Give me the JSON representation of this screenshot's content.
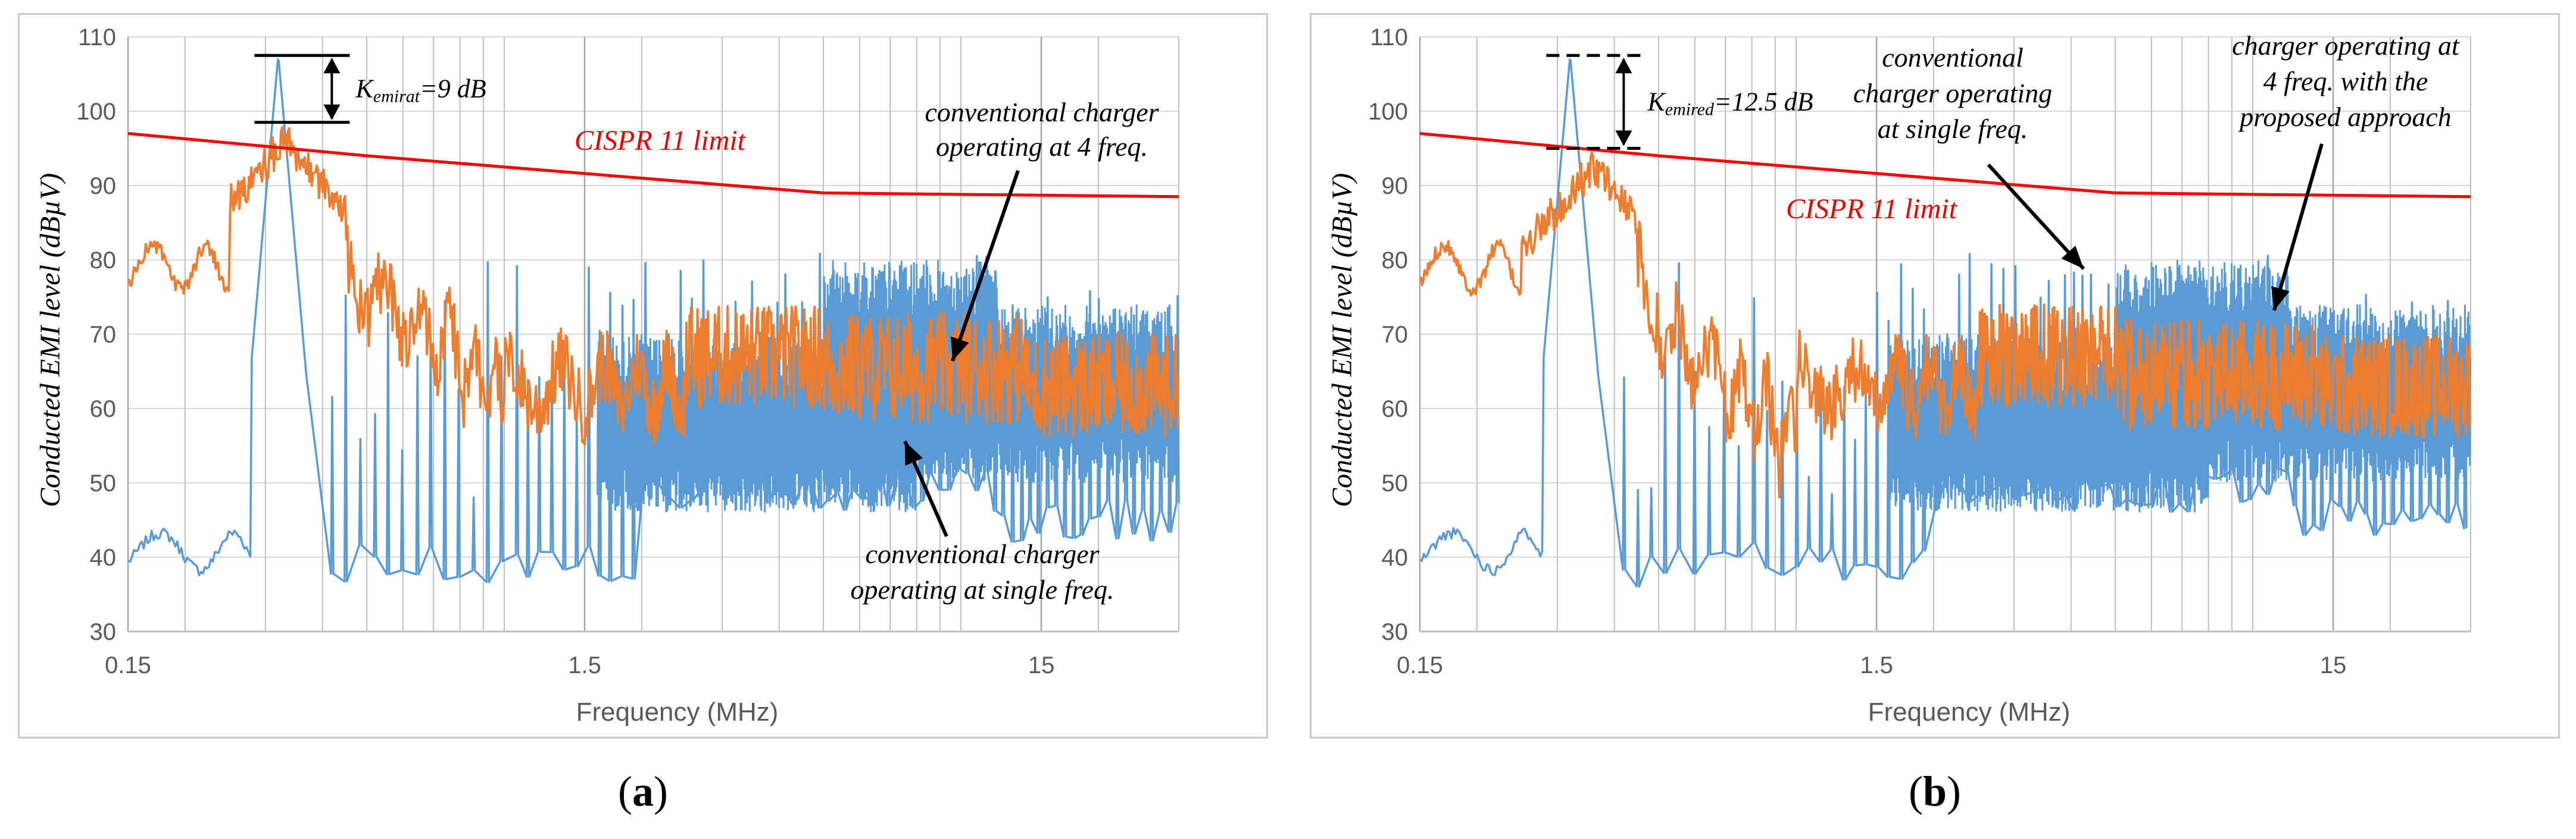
{
  "chart_data": [
    {
      "type": "line",
      "panel": "a",
      "caption_letter": "a",
      "xlabel": "Frequency (MHz)",
      "ylabel": "Conducted EMI level (dBµV)",
      "x_scale": "log",
      "xlim": [
        0.15,
        30
      ],
      "ylim": [
        30,
        110
      ],
      "x_ticks": [
        "0.15",
        "1.5",
        "15"
      ],
      "y_ticks": [
        "30",
        "40",
        "50",
        "60",
        "70",
        "80",
        "90",
        "100",
        "110"
      ],
      "limit_line": {
        "name": "CISPR 11 limit",
        "color": "#ff0000",
        "x": [
          0.15,
          0.5,
          5,
          30
        ],
        "y": [
          97,
          94,
          89,
          88.5
        ]
      },
      "series": [
        {
          "name": "conventional charger operating at single freq.",
          "color": "#5b9bd5",
          "peak": {
            "x": 0.32,
            "y": 107.5
          }
        },
        {
          "name": "conventional charger operating at 4 freq.",
          "color": "#ed7d31",
          "peak": {
            "x": 0.33,
            "y": 98.5
          }
        }
      ],
      "annotations": {
        "limit_label": "CISPR 11 limit",
        "k_main": "K",
        "k_sub": "emirat",
        "k_value": "=9 dB",
        "label_orange_1": "conventional charger",
        "label_orange_2": "operating at 4 freq.",
        "label_blue_1": "conventional charger",
        "label_blue_2": "operating at single freq."
      }
    },
    {
      "type": "line",
      "panel": "b",
      "caption_letter": "b",
      "xlabel": "Frequency (MHz)",
      "ylabel": "Conducted EMI level (dBµV)",
      "x_scale": "log",
      "xlim": [
        0.15,
        30
      ],
      "ylim": [
        30,
        110
      ],
      "x_ticks": [
        "0.15",
        "1.5",
        "15"
      ],
      "y_ticks": [
        "30",
        "40",
        "50",
        "60",
        "70",
        "80",
        "90",
        "100",
        "110"
      ],
      "limit_line": {
        "name": "CISPR 11 limit",
        "color": "#ff0000",
        "x": [
          0.15,
          0.5,
          5,
          30
        ],
        "y": [
          97,
          94,
          89,
          88.5
        ]
      },
      "series": [
        {
          "name": "conventional charger operating at single freq.",
          "color": "#5b9bd5",
          "peak": {
            "x": 0.32,
            "y": 107.5
          }
        },
        {
          "name": "charger operating at 4 freq. with the proposed approach",
          "color": "#ed7d31",
          "peak": {
            "x": 0.36,
            "y": 95
          }
        }
      ],
      "annotations": {
        "limit_label": "CISPR 11 limit",
        "k_main": "K",
        "k_sub": "emired",
        "k_value": "=12.5 dB",
        "label_blue_1": "conventional",
        "label_blue_2": "charger operating",
        "label_blue_3": "at single freq.",
        "label_orange_1": "charger operating at",
        "label_orange_2": "4 freq. with the",
        "label_orange_3": "proposed approach"
      }
    }
  ]
}
